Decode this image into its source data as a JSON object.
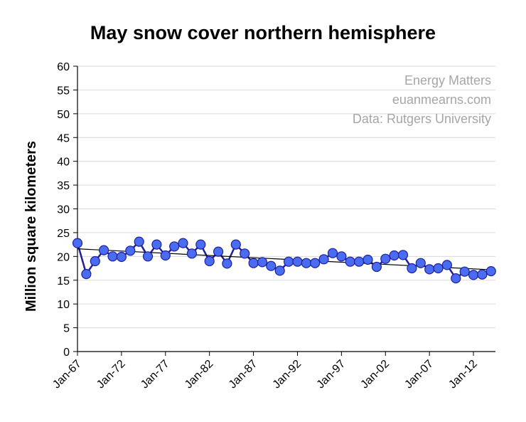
{
  "chart_data": {
    "type": "line",
    "title": "May snow cover northern hemisphere",
    "ylabel": "Million square kilometers",
    "xlabel": "",
    "ylim": [
      0,
      60
    ],
    "yticks": [
      0,
      5,
      10,
      15,
      20,
      25,
      30,
      35,
      40,
      45,
      50,
      55,
      60
    ],
    "xlim": [
      1967,
      2014.5
    ],
    "xticks": [
      {
        "label": "Jan-67",
        "year": 1967
      },
      {
        "label": "Jan-72",
        "year": 1972
      },
      {
        "label": "Jan-77",
        "year": 1977
      },
      {
        "label": "Jan-82",
        "year": 1982
      },
      {
        "label": "Jan-87",
        "year": 1987
      },
      {
        "label": "Jan-92",
        "year": 1992
      },
      {
        "label": "Jan-97",
        "year": 1997
      },
      {
        "label": "Jan-02",
        "year": 2002
      },
      {
        "label": "Jan-07",
        "year": 2007
      },
      {
        "label": "Jan-12",
        "year": 2012
      }
    ],
    "grid": true,
    "annotations": [
      "Energy Matters",
      "euanmearns.com",
      "Data: Rutgers University"
    ],
    "series": [
      {
        "color": "#1f1fa0",
        "marker_color": "#4a6cf0",
        "x": [
          1967,
          1968,
          1969,
          1970,
          1971,
          1972,
          1973,
          1974,
          1975,
          1976,
          1977,
          1978,
          1979,
          1980,
          1981,
          1982,
          1983,
          1984,
          1985,
          1986,
          1987,
          1988,
          1989,
          1990,
          1991,
          1992,
          1993,
          1994,
          1995,
          1996,
          1997,
          1998,
          1999,
          2000,
          2001,
          2002,
          2003,
          2004,
          2005,
          2006,
          2007,
          2008,
          2009,
          2010,
          2011,
          2012,
          2013,
          2014
        ],
        "values": [
          22.8,
          16.3,
          19.0,
          21.3,
          20.0,
          19.9,
          21.2,
          23.1,
          20.0,
          22.5,
          20.2,
          22.1,
          22.8,
          20.6,
          22.5,
          19.0,
          21.0,
          18.5,
          22.5,
          20.6,
          18.6,
          18.8,
          18.0,
          17.0,
          18.9,
          18.9,
          18.6,
          18.6,
          19.4,
          20.7,
          20.0,
          18.9,
          18.9,
          19.3,
          17.8,
          19.5,
          20.2,
          20.3,
          17.5,
          18.6,
          17.3,
          17.5,
          18.2,
          15.4,
          16.8,
          16.1,
          16.2,
          16.9
        ]
      }
    ],
    "trendline": {
      "color": "#000000",
      "start": [
        1967,
        21.6
      ],
      "end": [
        2014,
        17.2
      ]
    }
  }
}
